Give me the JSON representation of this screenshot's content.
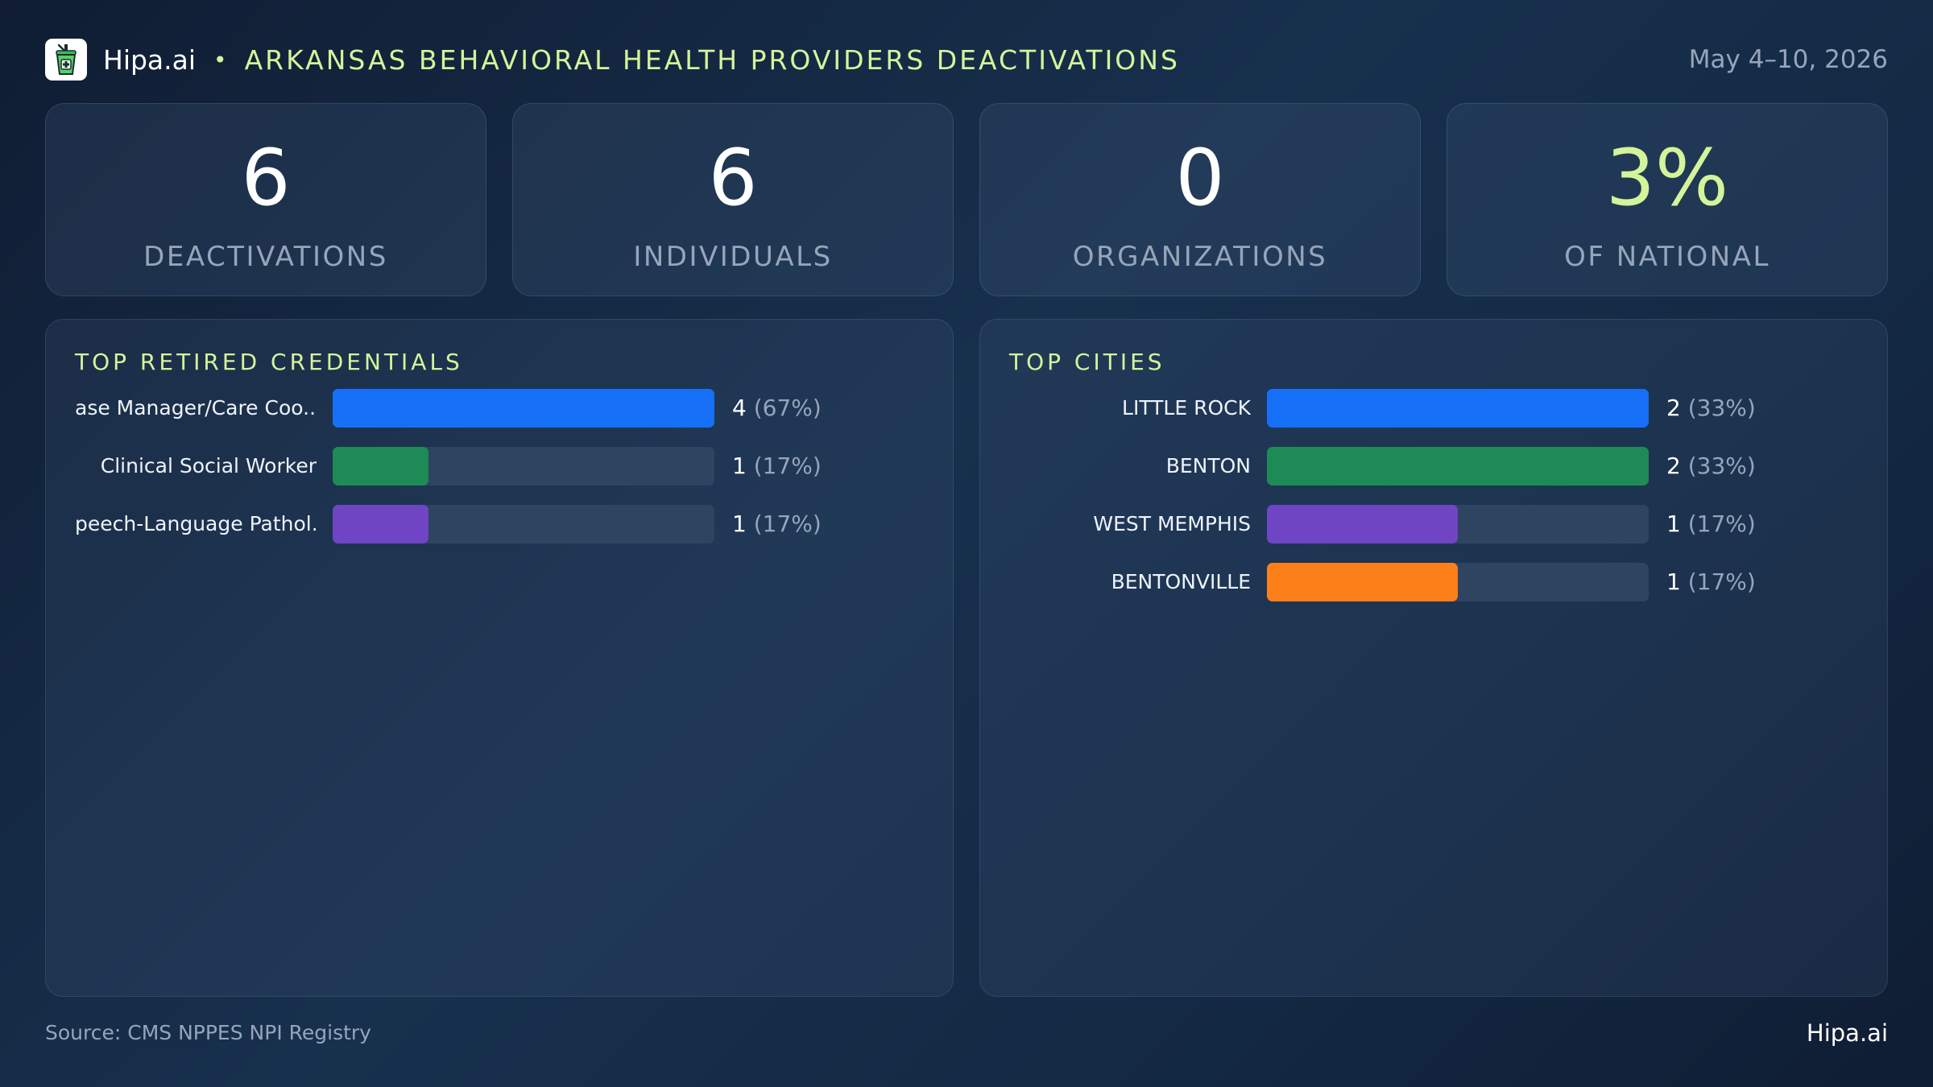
{
  "header": {
    "brand": "Hipa.ai",
    "separator": "•",
    "title": "ARKANSAS BEHAVIORAL HEALTH PROVIDERS DEACTIVATIONS",
    "date_range": "May 4–10, 2026",
    "logo_icon": "cup-icon"
  },
  "stats": [
    {
      "value": "6",
      "label": "DEACTIVATIONS"
    },
    {
      "value": "6",
      "label": "INDIVIDUALS"
    },
    {
      "value": "0",
      "label": "ORGANIZATIONS"
    },
    {
      "value": "3%",
      "label": "OF NATIONAL"
    }
  ],
  "colors": {
    "accent": "#d4f49a",
    "blue": "#1670f7",
    "green": "#1e8a55",
    "purple": "#6f45c4",
    "orange": "#fd7f1a",
    "track": "#2e4460"
  },
  "chart_data": [
    {
      "type": "bar",
      "orientation": "horizontal",
      "title": "TOP RETIRED CREDENTIALS",
      "categories": [
        "ase Manager/Care Coo...",
        "Clinical Social Worker",
        "peech-Language Pathol..."
      ],
      "values": [
        4,
        1,
        1
      ],
      "percents": [
        "(67%)",
        "(17%)",
        "(17%)"
      ],
      "colors": [
        "#1670f7",
        "#1e8a55",
        "#6f45c4"
      ],
      "xlim": [
        0,
        4
      ]
    },
    {
      "type": "bar",
      "orientation": "horizontal",
      "title": "TOP CITIES",
      "categories": [
        "LITTLE ROCK",
        "BENTON",
        "WEST MEMPHIS",
        "BENTONVILLE"
      ],
      "values": [
        2,
        2,
        1,
        1
      ],
      "percents": [
        "(33%)",
        "(33%)",
        "(17%)",
        "(17%)"
      ],
      "colors": [
        "#1670f7",
        "#1e8a55",
        "#6f45c4",
        "#fd7f1a"
      ],
      "xlim": [
        0,
        2
      ]
    }
  ],
  "footer": {
    "source": "Source: CMS NPPES NPI Registry",
    "brand": "Hipa.ai"
  }
}
